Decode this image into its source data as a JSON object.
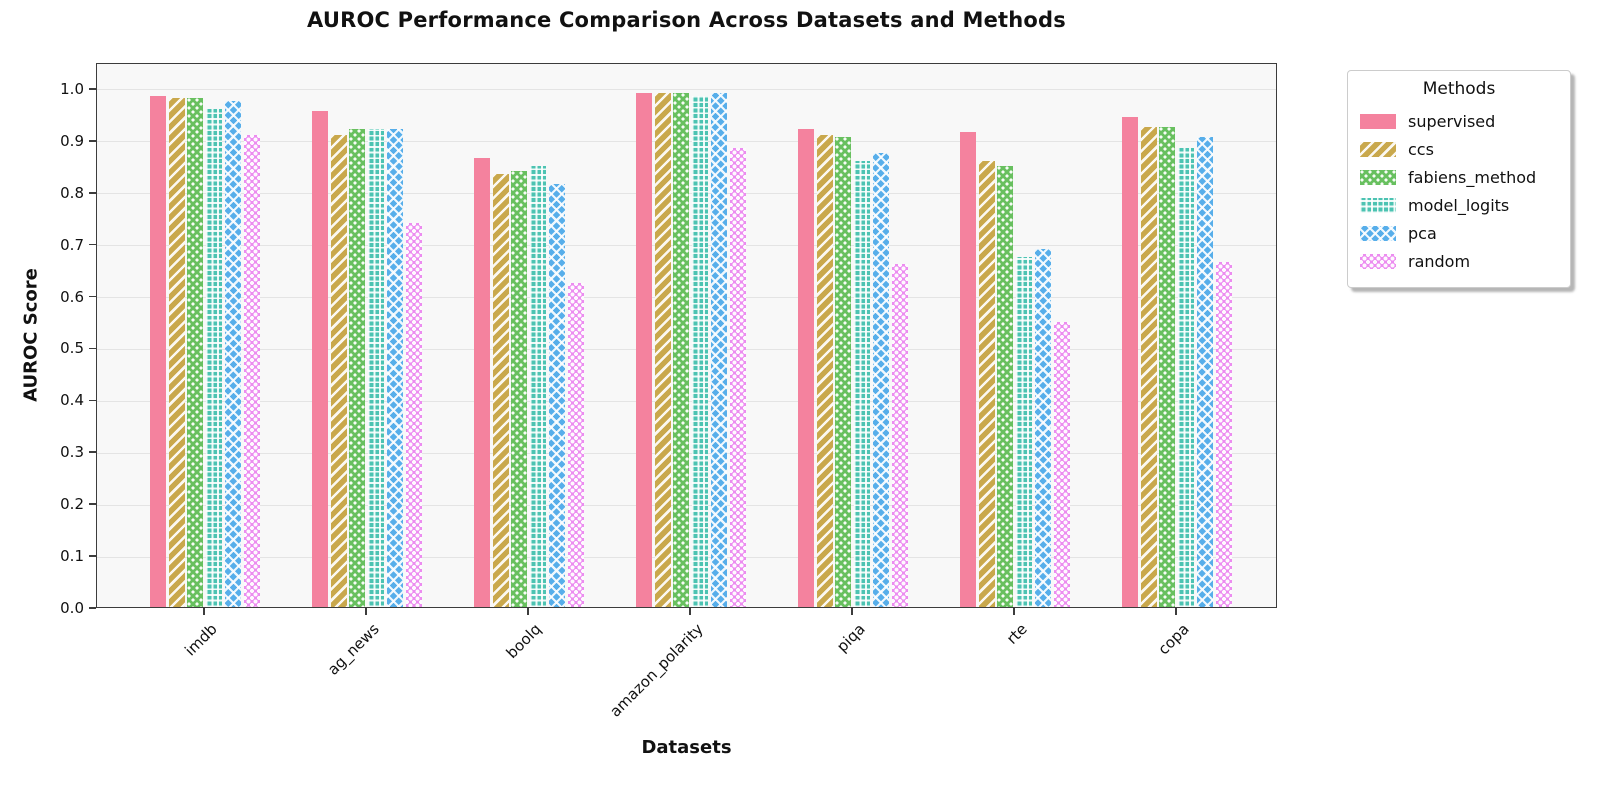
{
  "title": "AUROC Performance Comparison Across Datasets and Methods",
  "axes": {
    "x_label": "Datasets",
    "y_label": "AUROC Score"
  },
  "legend": {
    "title": "Methods"
  },
  "style": {
    "plot_background": "#f8f8f8",
    "grid_color": "#e4e4e4",
    "spine_color": "#3c3c3c",
    "hatch_color": "#ffffff"
  },
  "chart_data": {
    "type": "bar",
    "title": "AUROC Performance Comparison Across Datasets and Methods",
    "xlabel": "Datasets",
    "ylabel": "AUROC Score",
    "categories": [
      "imdb",
      "ag_news",
      "boolq",
      "amazon_polarity",
      "piqa",
      "rte",
      "copa"
    ],
    "series": [
      {
        "name": "supervised",
        "color": "#f4829e",
        "hatch": "none",
        "values": [
          0.985,
          0.955,
          0.865,
          0.99,
          0.92,
          0.915,
          0.945
        ]
      },
      {
        "name": "ccs",
        "color": "#c9a84c",
        "hatch": "diagonal-stripes",
        "values": [
          0.98,
          0.91,
          0.835,
          0.99,
          0.91,
          0.86,
          0.925
        ]
      },
      {
        "name": "fabiens_method",
        "color": "#68c05f",
        "hatch": "dots",
        "values": [
          0.98,
          0.92,
          0.84,
          0.99,
          0.905,
          0.85,
          0.925
        ]
      },
      {
        "name": "model_logits",
        "color": "#4cc3b2",
        "hatch": "grid",
        "values": [
          0.96,
          0.92,
          0.85,
          0.985,
          0.86,
          0.675,
          0.885
        ]
      },
      {
        "name": "pca",
        "color": "#57aeea",
        "hatch": "cross-diagonal",
        "values": [
          0.975,
          0.92,
          0.815,
          0.99,
          0.875,
          0.69,
          0.905
        ]
      },
      {
        "name": "random",
        "color": "#ec8cf0",
        "hatch": "small-dots",
        "values": [
          0.91,
          0.74,
          0.625,
          0.885,
          0.66,
          0.55,
          0.665
        ]
      }
    ],
    "yticks": [
      0.0,
      0.1,
      0.2,
      0.3,
      0.4,
      0.5,
      0.6,
      0.7,
      0.8,
      0.9,
      1.0
    ],
    "ylim": [
      0,
      1.05
    ],
    "grid": true,
    "legend_title": "Methods",
    "legend_position": "outside upper right"
  }
}
